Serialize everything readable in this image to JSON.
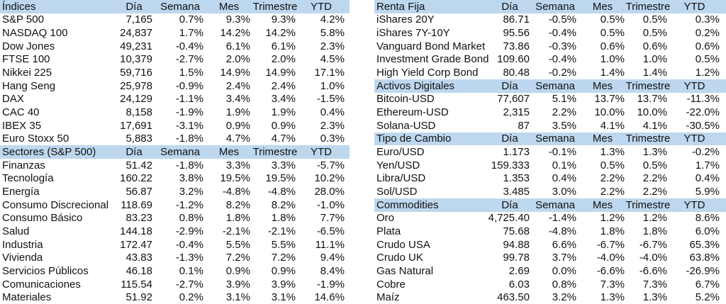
{
  "colors": {
    "header_bg": "#BDD7EE",
    "text": "#111111",
    "background": "#FFFFFF"
  },
  "columns": [
    "Día",
    "Semana",
    "Mes",
    "Trimestre",
    "YTD"
  ],
  "panels": {
    "left": {
      "sections": [
        {
          "title": "Índices",
          "rows": [
            [
              "S&P 500",
              "7,165",
              "0.7%",
              "9.3%",
              "9.3%",
              "4.2%"
            ],
            [
              "NASDAQ 100",
              "24,837",
              "1.7%",
              "14.2%",
              "14.2%",
              "5.8%"
            ],
            [
              "Dow Jones",
              "49,231",
              "-0.4%",
              "6.1%",
              "6.1%",
              "2.3%"
            ],
            [
              "FTSE 100",
              "10,379",
              "-2.7%",
              "2.0%",
              "2.0%",
              "4.5%"
            ],
            [
              "Nikkei 225",
              "59,716",
              "1.5%",
              "14.9%",
              "14.9%",
              "17.1%"
            ],
            [
              "Hang Seng",
              "25,978",
              "-0.9%",
              "2.4%",
              "2.4%",
              "1.0%"
            ],
            [
              "DAX",
              "24,129",
              "-1.1%",
              "3.4%",
              "3.4%",
              "-1.5%"
            ],
            [
              "CAC 40",
              "8,158",
              "-1.9%",
              "1.9%",
              "1.9%",
              "0.4%"
            ],
            [
              "IBEX 35",
              "17,691",
              "-3.1%",
              "0.9%",
              "0.9%",
              "2.3%"
            ],
            [
              "Euro Stoxx 50",
              "5,883",
              "-1.8%",
              "4.7%",
              "4.7%",
              "0.3%"
            ]
          ]
        },
        {
          "title": "Sectores (S&P 500)",
          "rows": [
            [
              "Finanzas",
              "51.42",
              "-1.8%",
              "3.3%",
              "3.3%",
              "-5.7%"
            ],
            [
              "Tecnología",
              "160.22",
              "3.8%",
              "19.5%",
              "19.5%",
              "10.2%"
            ],
            [
              "Energía",
              "56.87",
              "3.2%",
              "-4.8%",
              "-4.8%",
              "28.0%"
            ],
            [
              "Consumo Discrecional",
              "118.69",
              "-1.2%",
              "8.2%",
              "8.2%",
              "-1.0%"
            ],
            [
              "Consumo Básico",
              "83.23",
              "0.8%",
              "1.8%",
              "1.8%",
              "7.7%"
            ],
            [
              "Salud",
              "144.18",
              "-2.9%",
              "-2.1%",
              "-2.1%",
              "-6.5%"
            ],
            [
              "Industria",
              "172.47",
              "-0.4%",
              "5.5%",
              "5.5%",
              "11.1%"
            ],
            [
              "Vivienda",
              "43.83",
              "-1.3%",
              "7.2%",
              "7.2%",
              "9.4%"
            ],
            [
              "Servicios Públicos",
              "46.18",
              "0.1%",
              "0.9%",
              "0.9%",
              "8.4%"
            ],
            [
              "Comunicaciones",
              "115.54",
              "-2.7%",
              "3.9%",
              "3.9%",
              "-1.9%"
            ],
            [
              "Materiales",
              "51.92",
              "0.2%",
              "3.1%",
              "3.1%",
              "14.6%"
            ]
          ]
        }
      ]
    },
    "right": {
      "sections": [
        {
          "title": "Renta Fija",
          "rows": [
            [
              "iShares 20Y",
              "86.71",
              "-0.5%",
              "0.5%",
              "0.5%",
              "0.3%"
            ],
            [
              "iShares 7Y-10Y",
              "95.56",
              "-0.4%",
              "0.5%",
              "0.5%",
              "0.2%"
            ],
            [
              "Vanguard Bond Market",
              "73.86",
              "-0.3%",
              "0.6%",
              "0.6%",
              "0.6%"
            ],
            [
              "Investment Grade Bond",
              "109.60",
              "-0.4%",
              "1.0%",
              "1.0%",
              "0.5%"
            ],
            [
              "High Yield Corp Bond",
              "80.48",
              "-0.2%",
              "1.4%",
              "1.4%",
              "1.2%"
            ]
          ]
        },
        {
          "title": "Activos Digitales",
          "rows": [
            [
              "Bitcoin-USD",
              "77,607",
              "5.1%",
              "13.7%",
              "13.7%",
              "-11.3%"
            ],
            [
              "Ethereum-USD",
              "2,315",
              "2.2%",
              "10.0%",
              "10.0%",
              "-22.0%"
            ],
            [
              "Solana-USD",
              "87",
              "3.5%",
              "4.1%",
              "4.1%",
              "-30.5%"
            ]
          ]
        },
        {
          "title": "Tipo de Cambio",
          "rows": [
            [
              "Euro/USD",
              "1.173",
              "-0.1%",
              "1.3%",
              "1.3%",
              "-0.2%"
            ],
            [
              "Yen/USD",
              "159.333",
              "0.1%",
              "0.5%",
              "0.5%",
              "1.7%"
            ],
            [
              "Libra/USD",
              "1.353",
              "0.4%",
              "2.2%",
              "2.2%",
              "0.4%"
            ],
            [
              "Sol/USD",
              "3.485",
              "3.0%",
              "2.2%",
              "2.2%",
              "5.9%"
            ]
          ]
        },
        {
          "title": "Commodities",
          "rows": [
            [
              "Oro",
              "4,725.40",
              "-1.4%",
              "1.2%",
              "1.2%",
              "8.6%"
            ],
            [
              "Plata",
              "75.68",
              "-4.8%",
              "1.8%",
              "1.8%",
              "6.0%"
            ],
            [
              "Crudo USA",
              "94.88",
              "6.6%",
              "-6.7%",
              "-6.7%",
              "65.3%"
            ],
            [
              "Crudo UK",
              "99.78",
              "3.7%",
              "-4.0%",
              "-4.0%",
              "63.8%"
            ],
            [
              "Gas Natural",
              "2.69",
              "0.0%",
              "-6.6%",
              "-6.6%",
              "-26.9%"
            ],
            [
              "Cobre",
              "6.03",
              "0.8%",
              "7.3%",
              "7.3%",
              "6.7%"
            ],
            [
              "Maíz",
              "463.50",
              "3.2%",
              "1.3%",
              "1.3%",
              "5.2%"
            ]
          ]
        }
      ]
    }
  }
}
